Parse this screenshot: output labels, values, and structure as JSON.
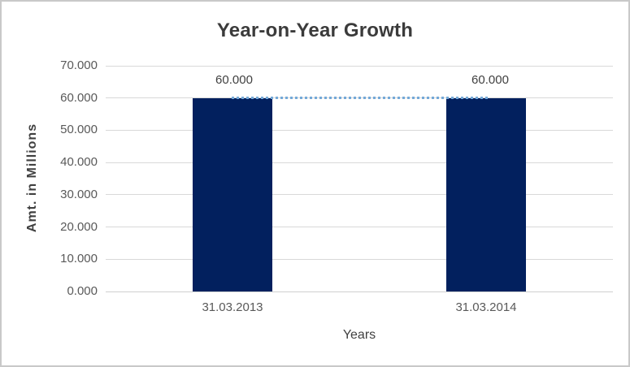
{
  "window": {
    "background": "#ffffff",
    "border_color": "#c9c9c9"
  },
  "chart_data": {
    "type": "bar",
    "title": "Year-on-Year Growth",
    "xlabel": "Years",
    "ylabel": "Amt. in Millions",
    "categories": [
      "31.03.2013",
      "31.03.2014"
    ],
    "series": [
      {
        "name": "Amt. in Millions",
        "values": [
          60,
          60
        ]
      }
    ],
    "data_labels": [
      "60.000",
      "60.000"
    ],
    "y_ticks": [
      "0.000",
      "10.000",
      "20.000",
      "30.000",
      "40.000",
      "50.000",
      "60.000",
      "70.000"
    ],
    "y_tick_values": [
      0,
      10,
      20,
      30,
      40,
      50,
      60,
      70
    ],
    "ylim": [
      0,
      70
    ],
    "grid": true,
    "legend": "none",
    "bar_color": "#02205e",
    "gridline_color": "#d9d9d9",
    "axis_text_color": "#595959",
    "label_text_color": "#404040",
    "trendline": {
      "style": "dotted",
      "color": "#74a9d8",
      "from_value": 60,
      "to_value": 60
    }
  }
}
